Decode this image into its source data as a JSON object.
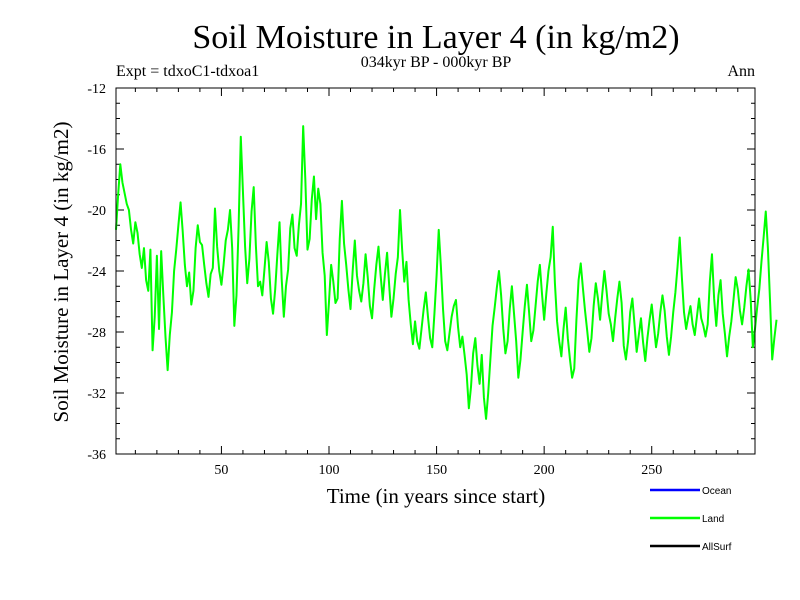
{
  "chart_data": {
    "type": "line",
    "title": "Soil Moisture in Layer 4 (in kg/m2)",
    "subtitle": "034kyr BP - 000kyr BP",
    "experiment_label": "Expt = tdxoC1-tdxoa1",
    "season_label": "Ann",
    "xlabel": "Time (in years since start)",
    "ylabel": "Soil Moisture in Layer 4 (in kg/m2)",
    "xlim": [
      1,
      298
    ],
    "ylim": [
      -36,
      -12
    ],
    "x_ticks": [
      50,
      100,
      150,
      200,
      250
    ],
    "y_ticks": [
      -12,
      -16,
      -20,
      -24,
      -28,
      -32,
      -36
    ],
    "x_tick_labels": [
      "50",
      "100",
      "150",
      "200",
      "250"
    ],
    "y_tick_labels": [
      "-12",
      "-16",
      "-20",
      "-24",
      "-28",
      "-32",
      "-36"
    ],
    "legend": [
      {
        "name": "Ocean",
        "color": "#0000ff"
      },
      {
        "name": "Land",
        "color": "#00ff00"
      },
      {
        "name": "AllSurf",
        "color": "#000000"
      }
    ],
    "series": [
      {
        "name": "Land",
        "color": "#00ff00",
        "x_start": 1,
        "x_step": 1,
        "values": [
          -21.3,
          -19.0,
          -17.0,
          -18.2,
          -18.9,
          -19.6,
          -20.0,
          -21.3,
          -22.2,
          -20.8,
          -21.5,
          -22.9,
          -23.8,
          -22.5,
          -24.6,
          -25.3,
          -22.6,
          -29.2,
          -27.0,
          -23.0,
          -27.8,
          -22.7,
          -25.6,
          -28.3,
          -30.5,
          -28.2,
          -26.7,
          -24.0,
          -22.6,
          -21.0,
          -19.5,
          -21.4,
          -23.6,
          -25.0,
          -24.1,
          -26.2,
          -25.3,
          -22.5,
          -21.0,
          -22.1,
          -22.3,
          -23.6,
          -24.8,
          -25.7,
          -24.2,
          -23.8,
          -19.9,
          -22.4,
          -24.0,
          -24.9,
          -23.6,
          -22.0,
          -21.3,
          -20.0,
          -22.5,
          -27.6,
          -25.6,
          -21.0,
          -15.2,
          -18.8,
          -22.4,
          -24.8,
          -23.2,
          -20.1,
          -18.5,
          -22.3,
          -25.0,
          -24.7,
          -25.6,
          -23.9,
          -22.1,
          -23.4,
          -25.8,
          -26.8,
          -25.2,
          -22.9,
          -20.8,
          -24.5,
          -27.0,
          -25.0,
          -23.9,
          -21.2,
          -20.3,
          -22.5,
          -23.0,
          -21.0,
          -19.6,
          -14.5,
          -18.0,
          -22.6,
          -21.9,
          -19.3,
          -17.8,
          -20.6,
          -18.6,
          -19.6,
          -22.8,
          -24.3,
          -28.2,
          -26.0,
          -23.6,
          -24.7,
          -26.1,
          -25.8,
          -21.9,
          -19.4,
          -22.2,
          -23.6,
          -25.2,
          -26.5,
          -24.0,
          -22.0,
          -24.3,
          -25.3,
          -26.0,
          -24.8,
          -22.9,
          -24.4,
          -26.3,
          -27.1,
          -25.2,
          -23.6,
          -22.4,
          -24.3,
          -25.9,
          -24.2,
          -22.8,
          -25.0,
          -27.0,
          -25.8,
          -24.2,
          -23.1,
          -20.0,
          -22.6,
          -24.7,
          -23.4,
          -25.9,
          -27.5,
          -28.8,
          -27.3,
          -28.6,
          -29.1,
          -27.8,
          -26.5,
          -25.4,
          -27.0,
          -28.4,
          -29.0,
          -26.8,
          -24.3,
          -21.3,
          -23.7,
          -26.5,
          -28.6,
          -29.2,
          -28.1,
          -27.0,
          -26.3,
          -25.9,
          -27.7,
          -29.0,
          -28.3,
          -29.5,
          -30.8,
          -33.0,
          -31.6,
          -29.4,
          -28.4,
          -30.2,
          -31.4,
          -29.5,
          -32.3,
          -33.7,
          -32.0,
          -29.8,
          -27.6,
          -26.4,
          -25.1,
          -24.0,
          -25.6,
          -27.8,
          -29.4,
          -28.6,
          -26.5,
          -25.0,
          -26.8,
          -28.6,
          -31.0,
          -29.8,
          -28.0,
          -26.3,
          -24.9,
          -26.7,
          -28.6,
          -27.9,
          -26.3,
          -24.7,
          -23.6,
          -25.5,
          -27.2,
          -25.5,
          -24.0,
          -23.1,
          -21.1,
          -24.8,
          -27.3,
          -28.6,
          -29.6,
          -27.8,
          -26.4,
          -28.4,
          -29.8,
          -31.0,
          -30.4,
          -27.2,
          -24.6,
          -23.5,
          -25.1,
          -26.6,
          -27.9,
          -29.3,
          -28.4,
          -26.3,
          -24.8,
          -25.8,
          -27.2,
          -25.5,
          -24.0,
          -25.3,
          -26.8,
          -27.5,
          -28.6,
          -27.1,
          -25.8,
          -24.7,
          -26.1,
          -28.9,
          -29.8,
          -28.6,
          -26.7,
          -25.8,
          -27.5,
          -29.3,
          -28.2,
          -27.1,
          -28.7,
          -29.9,
          -28.4,
          -27.2,
          -26.2,
          -27.6,
          -29.0,
          -28.1,
          -26.7,
          -25.6,
          -26.6,
          -28.3,
          -29.5,
          -28.3,
          -26.7,
          -25.4,
          -23.7,
          -21.8,
          -24.4,
          -26.7,
          -27.8,
          -27.0,
          -26.3,
          -27.5,
          -28.2,
          -27.0,
          -25.8,
          -27.1,
          -27.6,
          -28.3,
          -27.5,
          -24.7,
          -22.9,
          -25.8,
          -27.6,
          -25.6,
          -24.6,
          -26.8,
          -28.1,
          -29.6,
          -28.3,
          -27.3,
          -25.9,
          -24.4,
          -25.2,
          -26.6,
          -27.5,
          -26.4,
          -25.0,
          -23.9,
          -25.9,
          -29.0,
          -27.8,
          -26.4,
          -25.2,
          -23.4,
          -21.8,
          -20.1,
          -22.5,
          -26.0,
          -29.8,
          -28.4,
          -27.2
        ]
      }
    ]
  }
}
